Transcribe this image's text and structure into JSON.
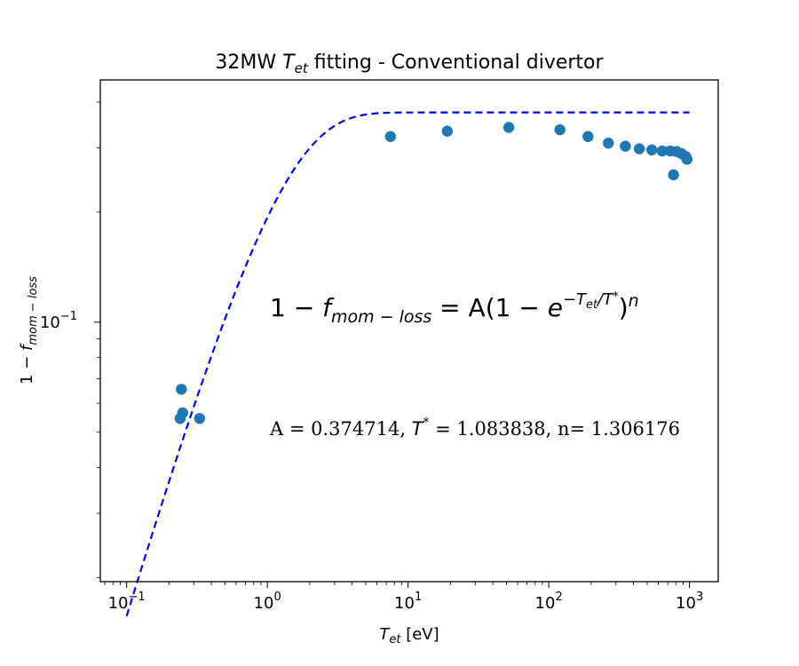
{
  "chart_data": {
    "type": "scatter",
    "title": {
      "prefix": "32MW ",
      "var_main": "T",
      "var_sub": "et",
      "suffix": " fitting - Conventional divertor"
    },
    "xlabel": {
      "main": "T",
      "sub": "et",
      "unit": " [eV]"
    },
    "ylabel": {
      "prefix": "1 − ",
      "main": "f",
      "sub": "mom − loss"
    },
    "xscale": "log",
    "yscale": "log",
    "xlim": [
      0.065,
      1600
    ],
    "ylim": [
      0.0195,
      0.46
    ],
    "x_ticks": [
      {
        "value": 0.1,
        "base": "10",
        "exp": "−1"
      },
      {
        "value": 1,
        "base": "10",
        "exp": "0"
      },
      {
        "value": 10,
        "base": "10",
        "exp": "1"
      },
      {
        "value": 100,
        "base": "10",
        "exp": "2"
      },
      {
        "value": 1000,
        "base": "10",
        "exp": "3"
      }
    ],
    "y_ticks": [
      {
        "value": 0.1,
        "base": "10",
        "exp": "−1"
      }
    ],
    "grid": false,
    "legend": "none",
    "annotations": {
      "equation": {
        "lhs_prefix": "1 − ",
        "lhs_main": "f",
        "lhs_sub": "mom − loss",
        "rhs_prefix": " = A(1 − ",
        "rhs_base": "e",
        "rhs_exp": "−T",
        "rhs_exp_sub": "et",
        "rhs_exp_tail": "/T",
        "rhs_exp_star": "*",
        "rhs_close": ")",
        "rhs_power": "n"
      },
      "params": {
        "a_text": "A = 0.374714, ",
        "t_main": "T",
        "t_star": "*",
        "t_eq": " = ",
        "t_value": " 1.083838, n= 1.306176"
      }
    },
    "series": [
      {
        "type": "scatter",
        "color": "#1f77b4",
        "points": [
          [
            0.24,
            0.0545
          ],
          [
            0.245,
            0.0655
          ],
          [
            0.25,
            0.0565
          ],
          [
            0.33,
            0.0545
          ],
          [
            7.5,
            0.322
          ],
          [
            19,
            0.333
          ],
          [
            52,
            0.341
          ],
          [
            120,
            0.336
          ],
          [
            190,
            0.322
          ],
          [
            265,
            0.309
          ],
          [
            350,
            0.303
          ],
          [
            440,
            0.298
          ],
          [
            540,
            0.296
          ],
          [
            640,
            0.294
          ],
          [
            730,
            0.294
          ],
          [
            810,
            0.293
          ],
          [
            880,
            0.289
          ],
          [
            940,
            0.284
          ],
          [
            960,
            0.279
          ],
          [
            770,
            0.253
          ]
        ]
      },
      {
        "type": "line",
        "style": "dashed",
        "color": "#0000ff",
        "fit": {
          "A": 0.374714,
          "T_star": 1.083838,
          "n": 1.306176
        },
        "x_range": [
          0.1,
          1000
        ]
      }
    ]
  }
}
